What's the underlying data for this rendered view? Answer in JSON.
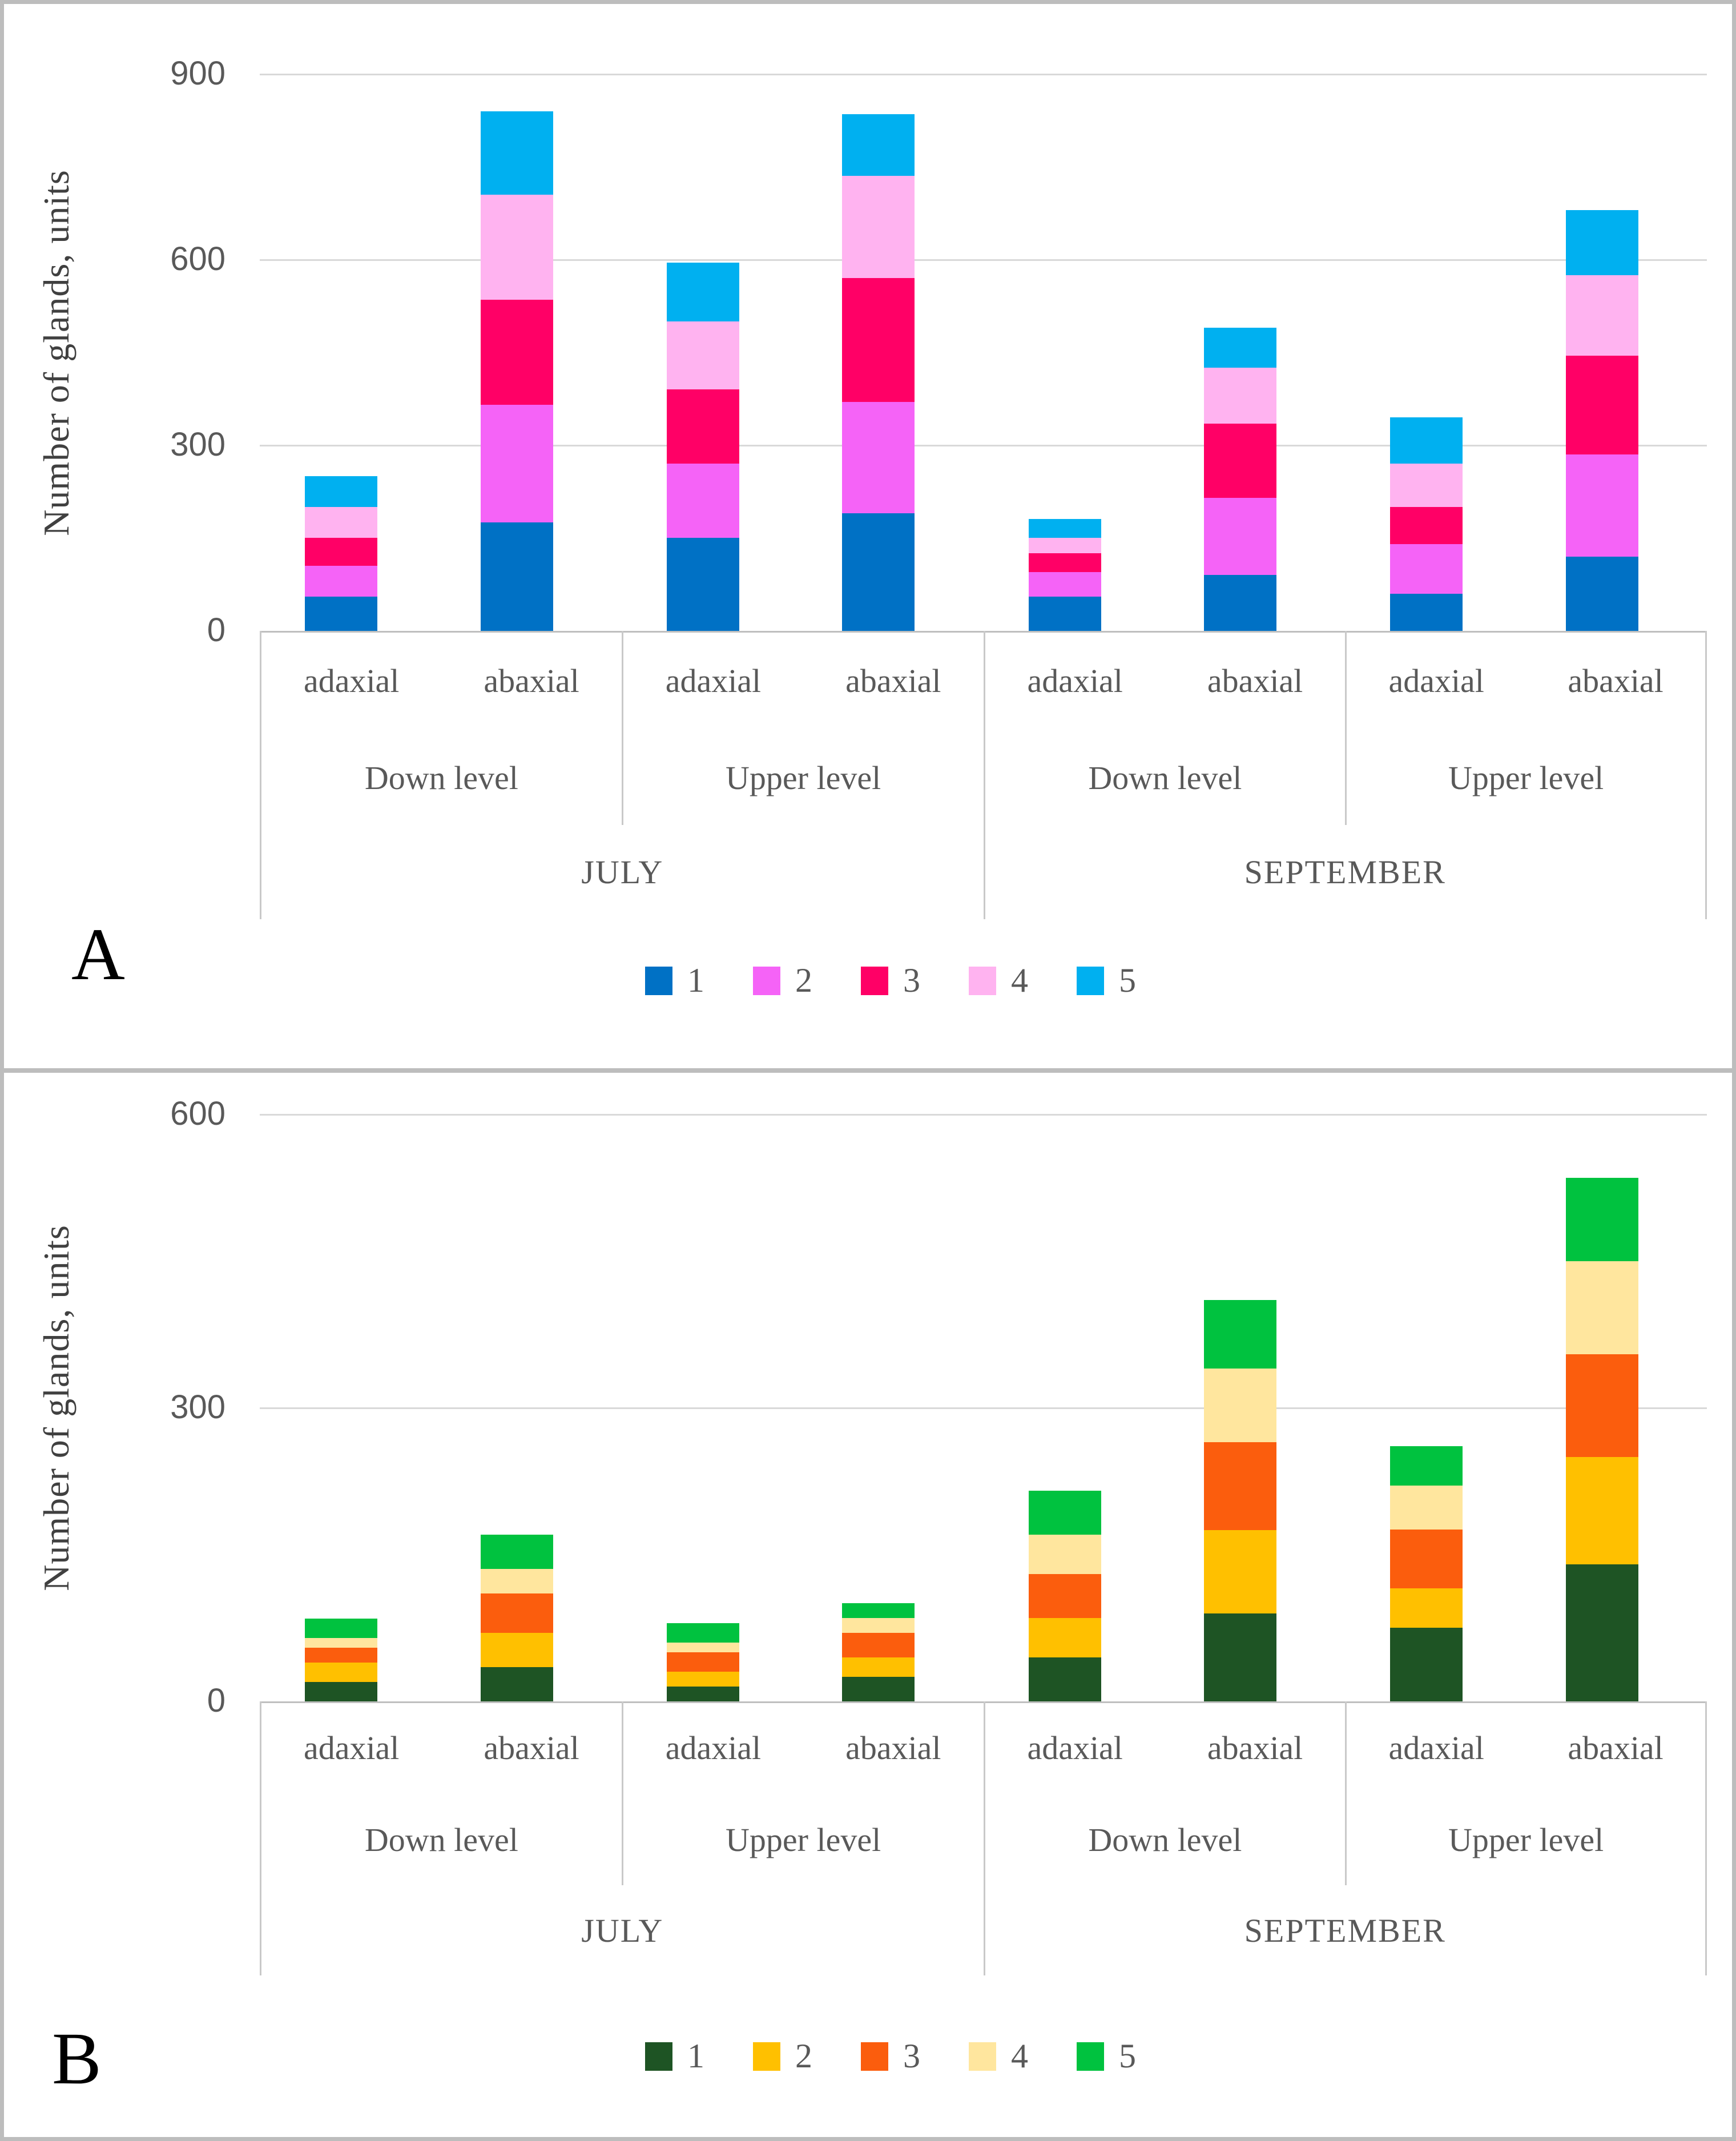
{
  "panels": [
    {
      "letter": "A"
    },
    {
      "letter": "B"
    }
  ],
  "style": {
    "grid_color": "#D9D9D9",
    "axis_color": "#BFBFBF",
    "band_line_color": "#C9C9C9",
    "tick_text_color": "#595959",
    "label_text_color": "#595959",
    "frame_color": "#BDBDBD"
  },
  "chart_data": [
    {
      "type": "bar",
      "stacked": true,
      "panel": "A",
      "title": "",
      "xlabel": "",
      "ylabel": "Number of glands, units",
      "ylim": [
        0,
        900
      ],
      "yticks": [
        0,
        300,
        600,
        900
      ],
      "grid": true,
      "legend_position": "bottom",
      "months": [
        {
          "label": "JULY",
          "levels": [
            {
              "label": "Down level",
              "sides": [
                "adaxial",
                "abaxial"
              ]
            },
            {
              "label": "Upper level",
              "sides": [
                "adaxial",
                "abaxial"
              ]
            }
          ]
        },
        {
          "label": "SEPTEMBER",
          "levels": [
            {
              "label": "Down level",
              "sides": [
                "adaxial",
                "abaxial"
              ]
            },
            {
              "label": "Upper level",
              "sides": [
                "adaxial",
                "abaxial"
              ]
            }
          ]
        }
      ],
      "categories": [
        "JULY / Down level / adaxial",
        "JULY / Down level / abaxial",
        "JULY / Upper level / adaxial",
        "JULY / Upper level / abaxial",
        "SEPTEMBER / Down level / adaxial",
        "SEPTEMBER / Down level / abaxial",
        "SEPTEMBER / Upper level / adaxial",
        "SEPTEMBER / Upper level / abaxial"
      ],
      "series": [
        {
          "name": "1",
          "color": "#0071C5",
          "values": [
            55,
            175,
            150,
            190,
            55,
            90,
            60,
            120
          ]
        },
        {
          "name": "2",
          "color": "#F563F7",
          "values": [
            50,
            190,
            120,
            180,
            40,
            125,
            80,
            165
          ]
        },
        {
          "name": "3",
          "color": "#FF0066",
          "values": [
            45,
            170,
            120,
            200,
            30,
            120,
            60,
            160
          ]
        },
        {
          "name": "4",
          "color": "#FFB3F0",
          "values": [
            50,
            170,
            110,
            165,
            25,
            90,
            70,
            130
          ]
        },
        {
          "name": "5",
          "color": "#00B0F0",
          "values": [
            50,
            135,
            95,
            100,
            30,
            65,
            75,
            105
          ]
        }
      ],
      "totals": [
        250,
        840,
        595,
        835,
        180,
        490,
        345,
        680
      ]
    },
    {
      "type": "bar",
      "stacked": true,
      "panel": "B",
      "title": "",
      "xlabel": "",
      "ylabel": "Number of glands, units",
      "ylim": [
        0,
        600
      ],
      "yticks": [
        0,
        300,
        600
      ],
      "grid": true,
      "legend_position": "bottom",
      "months": [
        {
          "label": "JULY",
          "levels": [
            {
              "label": "Down level",
              "sides": [
                "adaxial",
                "abaxial"
              ]
            },
            {
              "label": "Upper level",
              "sides": [
                "adaxial",
                "abaxial"
              ]
            }
          ]
        },
        {
          "label": "SEPTEMBER",
          "levels": [
            {
              "label": "Down level",
              "sides": [
                "adaxial",
                "abaxial"
              ]
            },
            {
              "label": "Upper level",
              "sides": [
                "adaxial",
                "abaxial"
              ]
            }
          ]
        }
      ],
      "categories": [
        "JULY / Down level / adaxial",
        "JULY / Down level / abaxial",
        "JULY / Upper level / adaxial",
        "JULY / Upper level / abaxial",
        "SEPTEMBER / Down level / adaxial",
        "SEPTEMBER / Down level / abaxial",
        "SEPTEMBER / Upper level / adaxial",
        "SEPTEMBER / Upper level / abaxial"
      ],
      "series": [
        {
          "name": "1",
          "color": "#1E5424",
          "values": [
            20,
            35,
            15,
            25,
            45,
            90,
            75,
            140
          ]
        },
        {
          "name": "2",
          "color": "#FFC000",
          "values": [
            20,
            35,
            15,
            20,
            40,
            85,
            40,
            110
          ]
        },
        {
          "name": "3",
          "color": "#FB5D0D",
          "values": [
            15,
            40,
            20,
            25,
            45,
            90,
            60,
            105
          ]
        },
        {
          "name": "4",
          "color": "#FFE69E",
          "values": [
            10,
            25,
            10,
            15,
            40,
            75,
            45,
            95
          ]
        },
        {
          "name": "5",
          "color": "#00C23F",
          "values": [
            20,
            35,
            20,
            15,
            45,
            70,
            40,
            85
          ]
        }
      ],
      "totals": [
        85,
        170,
        80,
        100,
        215,
        410,
        260,
        535
      ]
    }
  ]
}
